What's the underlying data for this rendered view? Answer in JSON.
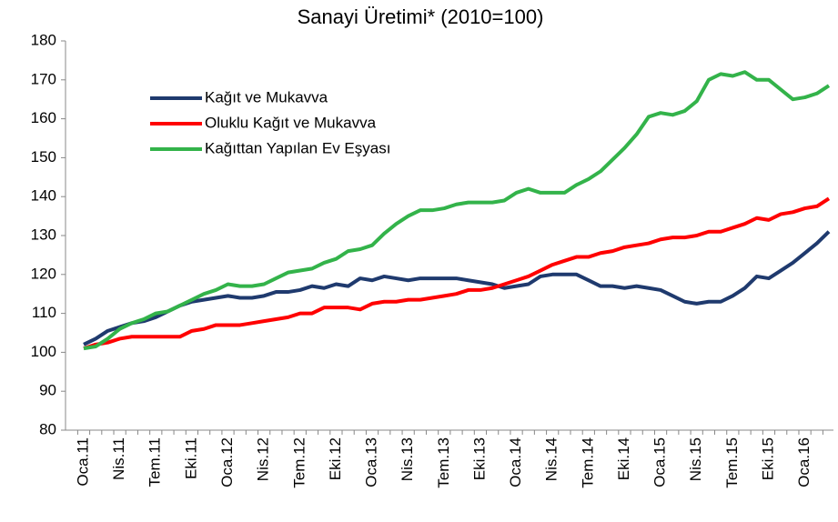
{
  "chart_data": {
    "type": "line",
    "title": "Sanayi Üretimi* (2010=100)",
    "categories": [
      "Oca.11",
      null,
      null,
      "Nis.11",
      null,
      null,
      "Tem.11",
      null,
      null,
      "Eki.11",
      null,
      null,
      "Oca.12",
      null,
      null,
      "Nis.12",
      null,
      null,
      "Tem.12",
      null,
      null,
      "Eki.12",
      null,
      null,
      "Oca.13",
      null,
      null,
      "Nis.13",
      null,
      null,
      "Tem.13",
      null,
      null,
      "Eki.13",
      null,
      null,
      "Oca.14",
      null,
      null,
      "Nis.14",
      null,
      null,
      "Tem.14",
      null,
      null,
      "Eki.14",
      null,
      null,
      "Oca.15",
      null,
      null,
      "Nis.15",
      null,
      null,
      "Tem.15",
      null,
      null,
      "Eki.15",
      null,
      null,
      "Oca.16",
      null,
      null
    ],
    "series": [
      {
        "name": "Kağıt ve Mukavva",
        "color": "#1f3a6e",
        "values": [
          102,
          103.5,
          105.5,
          106.5,
          107.5,
          108,
          109,
          110.5,
          112,
          113,
          113.5,
          114,
          114.5,
          114,
          114,
          114.5,
          115.5,
          115.5,
          116,
          117,
          116.5,
          117.5,
          117,
          119,
          118.5,
          119.5,
          119,
          118.5,
          119,
          119,
          119,
          119,
          118.5,
          118,
          117.5,
          116.5,
          117,
          117.5,
          119.5,
          120,
          120,
          120,
          118.5,
          117,
          117,
          116.5,
          117,
          116.5,
          116,
          114.5,
          113,
          112.5,
          113,
          113,
          114.5,
          116.5,
          119.5,
          119,
          121,
          123,
          125.5,
          128,
          131
        ]
      },
      {
        "name": "Oluklu Kağıt ve Mukavva",
        "color": "#ff0000",
        "values": [
          101,
          102,
          102.5,
          103.5,
          104,
          104,
          104,
          104,
          104,
          105.5,
          106,
          107,
          107,
          107,
          107.5,
          108,
          108.5,
          109,
          110,
          110,
          111.5,
          111.5,
          111.5,
          111,
          112.5,
          113,
          113,
          113.5,
          113.5,
          114,
          114.5,
          115,
          116,
          116,
          116.5,
          117.5,
          118.5,
          119.5,
          121,
          122.5,
          123.5,
          124.5,
          124.5,
          125.5,
          126,
          127,
          127.5,
          128,
          129,
          129.5,
          129.5,
          130,
          131,
          131,
          132,
          133,
          134.5,
          134,
          135.5,
          136,
          137,
          137.5,
          139.5
        ]
      },
      {
        "name": "Kağıttan Yapılan Ev Eşyası",
        "color": "#33b34a",
        "values": [
          101,
          101.5,
          103.5,
          106,
          107.5,
          108.5,
          110,
          110.5,
          112,
          113.5,
          115,
          116,
          117.5,
          117,
          117,
          117.5,
          119,
          120.5,
          121,
          121.5,
          123,
          124,
          126,
          126.5,
          127.5,
          130.5,
          133,
          135,
          136.5,
          136.5,
          137,
          138,
          138.5,
          138.5,
          138.5,
          139,
          141,
          142,
          141,
          141,
          141,
          143,
          144.5,
          146.5,
          149.5,
          152.5,
          156,
          160.5,
          161.5,
          161,
          162,
          164.5,
          170,
          171.5,
          171,
          172,
          170,
          170,
          167.5,
          165,
          165.5,
          166.5,
          168.5
        ]
      }
    ],
    "ylim": [
      80,
      180
    ],
    "yticks": [
      80,
      90,
      100,
      110,
      120,
      130,
      140,
      150,
      160,
      170,
      180
    ]
  }
}
